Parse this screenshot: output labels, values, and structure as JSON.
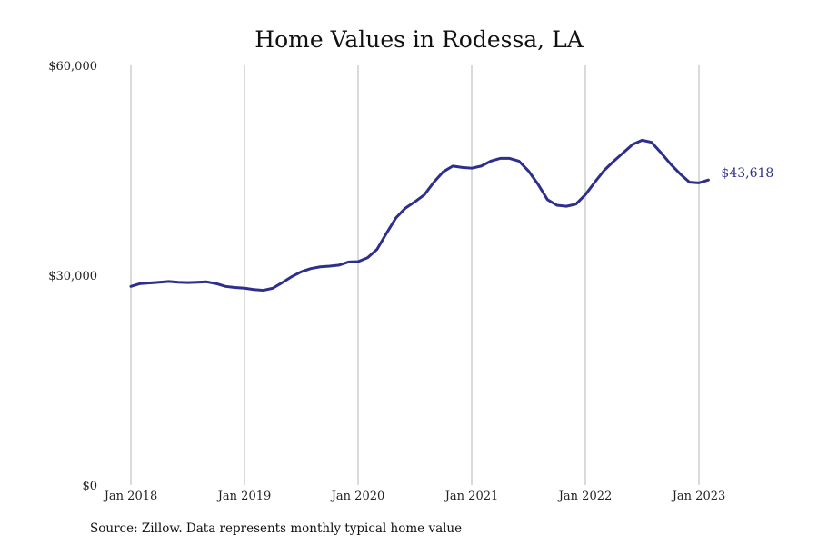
{
  "colors": {
    "line": "#2e2e8c",
    "gridline": "#b5b5b5",
    "text": "#222222"
  },
  "source": "Source: Zillow. Data represents monthly typical home value",
  "chart_data": {
    "type": "line",
    "title": "Home Values in Rodessa, LA",
    "xlabel": "",
    "ylabel": "",
    "grid": {
      "vertical": true,
      "horizontal": false
    },
    "x_ticks": [
      "Jan 2018",
      "Jan 2019",
      "Jan 2020",
      "Jan 2021",
      "Jan 2022",
      "Jan 2023"
    ],
    "y_ticks": [
      {
        "value": 0,
        "label": "$0"
      },
      {
        "value": 30000,
        "label": "$30,000"
      },
      {
        "value": 60000,
        "label": "$60,000"
      }
    ],
    "ylim": [
      0,
      60000
    ],
    "xlim": [
      "2018-01",
      "2023-01"
    ],
    "end_label": "$43,618",
    "series": [
      {
        "x": [
          "2018-01",
          "2018-02",
          "2018-03",
          "2018-04",
          "2018-05",
          "2018-06",
          "2018-07",
          "2018-08",
          "2018-09",
          "2018-10",
          "2018-11",
          "2018-12",
          "2019-01",
          "2019-02",
          "2019-03",
          "2019-04",
          "2019-05",
          "2019-06",
          "2019-07",
          "2019-08",
          "2019-09",
          "2019-10",
          "2019-11",
          "2019-12",
          "2020-01",
          "2020-02",
          "2020-03",
          "2020-04",
          "2020-05",
          "2020-06",
          "2020-07",
          "2020-08",
          "2020-09",
          "2020-10",
          "2020-11",
          "2020-12",
          "2021-01",
          "2021-02",
          "2021-03",
          "2021-04",
          "2021-05",
          "2021-06",
          "2021-07",
          "2021-08",
          "2021-09",
          "2021-10",
          "2021-11",
          "2021-12",
          "2022-01",
          "2022-02",
          "2022-03",
          "2022-04",
          "2022-05",
          "2022-06",
          "2022-07",
          "2022-08",
          "2022-09",
          "2022-10",
          "2022-11",
          "2022-12",
          "2023-01",
          "2023-02"
        ],
        "values": [
          28400,
          28800,
          28900,
          29000,
          29100,
          29000,
          28950,
          29000,
          29050,
          28800,
          28400,
          28250,
          28150,
          27950,
          27850,
          28150,
          28950,
          29800,
          30500,
          30950,
          31200,
          31300,
          31450,
          31900,
          31950,
          32500,
          33700,
          36000,
          38200,
          39600,
          40500,
          41500,
          43300,
          44800,
          45600,
          45400,
          45300,
          45600,
          46300,
          46700,
          46700,
          46300,
          44900,
          43000,
          40800,
          40000,
          39850,
          40150,
          41500,
          43300,
          45000,
          46300,
          47500,
          48700,
          49300,
          49000,
          47500,
          45900,
          44500,
          43300,
          43200,
          43618
        ]
      }
    ]
  }
}
